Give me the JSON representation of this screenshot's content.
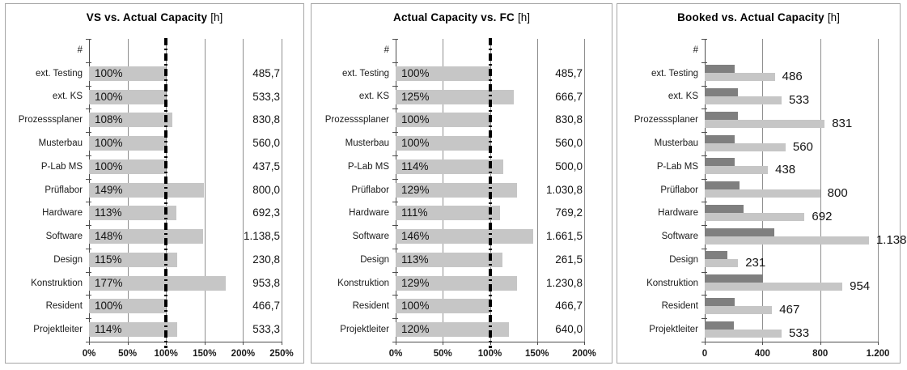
{
  "colors": {
    "bar_light": "#c6c6c6",
    "bar_dark": "#7f7f7f",
    "grid": "#8f8f8f",
    "axis": "#4d4d4d",
    "ref_line": "#000000",
    "panel_border": "#a6a6a6",
    "text": "#141414"
  },
  "chart_data": [
    {
      "type": "bar",
      "title": "VS vs. Actual Capacity",
      "unit": "[h]",
      "legend_position": "none",
      "grid": true,
      "categories": [
        "#",
        "ext. Testing",
        "ext. KS",
        "Prozesssplaner",
        "Musterbau",
        "P-Lab MS",
        "Prüflabor",
        "Hardware",
        "Software",
        "Design",
        "Konstruktion",
        "Resident",
        "Projektleiter"
      ],
      "values_pct": [
        null,
        100,
        100,
        108,
        100,
        100,
        149,
        113,
        148,
        115,
        177,
        100,
        114
      ],
      "bar_labels": [
        "",
        "100%",
        "100%",
        "108%",
        "100%",
        "100%",
        "149%",
        "113%",
        "148%",
        "115%",
        "177%",
        "100%",
        "114%"
      ],
      "hours_labels": [
        "",
        "485,7",
        "533,3",
        "830,8",
        "560,0",
        "437,5",
        "800,0",
        "692,3",
        "1.138,5",
        "230,8",
        "953,8",
        "466,7",
        "533,3"
      ],
      "hours_values": [
        null,
        485.7,
        533.3,
        830.8,
        560.0,
        437.5,
        800.0,
        692.3,
        1138.5,
        230.8,
        953.8,
        466.7,
        533.3
      ],
      "x_tick_labels": [
        "0%",
        "50%",
        "100%",
        "150%",
        "200%",
        "250%"
      ],
      "x_tick_values": [
        0,
        50,
        100,
        150,
        200,
        250
      ],
      "xmax": 250,
      "ref_line_value": 100
    },
    {
      "type": "bar",
      "title": "Actual Capacity vs. FC",
      "unit": "[h]",
      "legend_position": "none",
      "grid": true,
      "categories": [
        "#",
        "ext. Testing",
        "ext. KS",
        "Prozesssplaner",
        "Musterbau",
        "P-Lab MS",
        "Prüflabor",
        "Hardware",
        "Software",
        "Design",
        "Konstruktion",
        "Resident",
        "Projektleiter"
      ],
      "values_pct": [
        null,
        100,
        125,
        100,
        100,
        114,
        129,
        111,
        146,
        113,
        129,
        100,
        120
      ],
      "bar_labels": [
        "",
        "100%",
        "125%",
        "100%",
        "100%",
        "114%",
        "129%",
        "111%",
        "146%",
        "113%",
        "129%",
        "100%",
        "120%"
      ],
      "hours_labels": [
        "",
        "485,7",
        "666,7",
        "830,8",
        "560,0",
        "500,0",
        "1.030,8",
        "769,2",
        "1.661,5",
        "261,5",
        "1.230,8",
        "466,7",
        "640,0"
      ],
      "hours_values": [
        null,
        485.7,
        666.7,
        830.8,
        560.0,
        500.0,
        1030.8,
        769.2,
        1661.5,
        261.5,
        1230.8,
        466.7,
        640.0
      ],
      "x_tick_labels": [
        "0%",
        "50%",
        "100%",
        "150%",
        "200%"
      ],
      "x_tick_values": [
        0,
        50,
        100,
        150,
        200
      ],
      "xmax": 200,
      "ref_line_value": 100
    },
    {
      "type": "bar",
      "title": "Booked vs. Actual Capacity",
      "unit": "[h]",
      "legend_position": "none",
      "grid": true,
      "categories": [
        "#",
        "ext. Testing",
        "ext. KS",
        "Prozesssplaner",
        "Musterbau",
        "P-Lab MS",
        "Prüflabor",
        "Hardware",
        "Software",
        "Design",
        "Konstruktion",
        "Resident",
        "Projektleiter"
      ],
      "series": [
        {
          "name": "Booked",
          "values": [
            null,
            205,
            230,
            230,
            205,
            205,
            240,
            270,
            480,
            155,
            405,
            205,
            200
          ]
        },
        {
          "name": "Actual Capacity",
          "values": [
            null,
            486,
            533,
            831,
            560,
            438,
            800,
            692,
            1138,
            231,
            954,
            467,
            533
          ]
        }
      ],
      "value_labels": [
        "",
        "486",
        "533",
        "831",
        "560",
        "438",
        "800",
        "692",
        "1.138",
        "231",
        "954",
        "467",
        "533"
      ],
      "x_tick_labels": [
        "0",
        "400",
        "800",
        "1.200"
      ],
      "x_tick_values": [
        0,
        400,
        800,
        1200
      ],
      "xmax": 1200,
      "ref_line_value": null
    }
  ]
}
